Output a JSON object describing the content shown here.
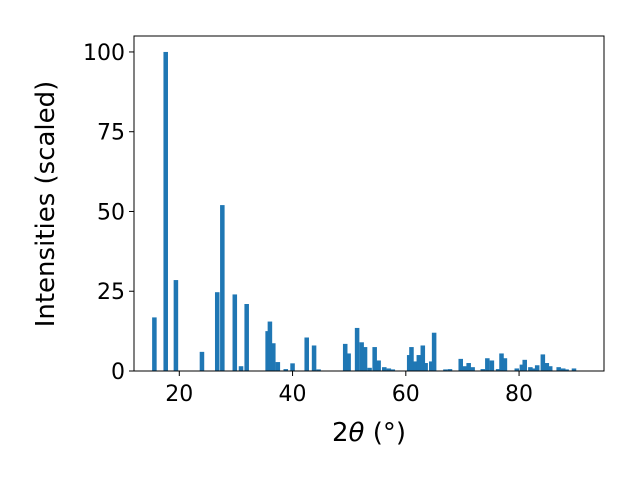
{
  "chart_data": {
    "type": "bar",
    "title": "",
    "xlabel_parts": {
      "pre": "2",
      "theta": "θ",
      "post": " (°)"
    },
    "ylabel": "Intensities (scaled)",
    "xlim": [
      12,
      95
    ],
    "ylim": [
      0,
      105
    ],
    "xticks": [
      20,
      40,
      60,
      80
    ],
    "yticks": [
      0,
      25,
      50,
      75,
      100
    ],
    "bar_color": "#1f77b4",
    "grid": false,
    "bars": [
      {
        "x": 15.6,
        "y": 16.8
      },
      {
        "x": 17.6,
        "y": 100
      },
      {
        "x": 19.4,
        "y": 28.5
      },
      {
        "x": 24.0,
        "y": 6.0
      },
      {
        "x": 26.7,
        "y": 24.7
      },
      {
        "x": 27.6,
        "y": 52.0
      },
      {
        "x": 29.8,
        "y": 24.0
      },
      {
        "x": 30.9,
        "y": 1.5
      },
      {
        "x": 31.9,
        "y": 21.0
      },
      {
        "x": 35.6,
        "y": 12.5
      },
      {
        "x": 36.0,
        "y": 15.5
      },
      {
        "x": 36.6,
        "y": 8.7
      },
      {
        "x": 37.4,
        "y": 2.8
      },
      {
        "x": 38.8,
        "y": 0.6
      },
      {
        "x": 40.0,
        "y": 2.4
      },
      {
        "x": 42.5,
        "y": 10.5
      },
      {
        "x": 43.8,
        "y": 8.0
      },
      {
        "x": 44.6,
        "y": 0.5
      },
      {
        "x": 49.3,
        "y": 8.5
      },
      {
        "x": 49.9,
        "y": 5.5
      },
      {
        "x": 51.4,
        "y": 13.5
      },
      {
        "x": 52.2,
        "y": 9.0
      },
      {
        "x": 52.8,
        "y": 7.5
      },
      {
        "x": 53.6,
        "y": 1.0
      },
      {
        "x": 54.5,
        "y": 7.5
      },
      {
        "x": 55.2,
        "y": 3.3
      },
      {
        "x": 56.2,
        "y": 1.2
      },
      {
        "x": 57.0,
        "y": 0.8
      },
      {
        "x": 57.7,
        "y": 0.5
      },
      {
        "x": 60.6,
        "y": 5.0
      },
      {
        "x": 61.0,
        "y": 7.5
      },
      {
        "x": 61.7,
        "y": 3.0
      },
      {
        "x": 62.3,
        "y": 5.0
      },
      {
        "x": 63.0,
        "y": 8.0
      },
      {
        "x": 63.5,
        "y": 2.5
      },
      {
        "x": 64.5,
        "y": 3.0
      },
      {
        "x": 65.0,
        "y": 12.0
      },
      {
        "x": 67.0,
        "y": 0.5
      },
      {
        "x": 67.8,
        "y": 0.6
      },
      {
        "x": 69.7,
        "y": 3.8
      },
      {
        "x": 70.4,
        "y": 1.5
      },
      {
        "x": 71.1,
        "y": 2.5
      },
      {
        "x": 71.8,
        "y": 1.2
      },
      {
        "x": 73.6,
        "y": 0.6
      },
      {
        "x": 74.4,
        "y": 4.0
      },
      {
        "x": 75.2,
        "y": 3.3
      },
      {
        "x": 76.3,
        "y": 0.6
      },
      {
        "x": 76.9,
        "y": 5.5
      },
      {
        "x": 77.5,
        "y": 4.0
      },
      {
        "x": 79.6,
        "y": 0.8
      },
      {
        "x": 80.5,
        "y": 2.0
      },
      {
        "x": 81.0,
        "y": 3.5
      },
      {
        "x": 82.0,
        "y": 1.2
      },
      {
        "x": 82.7,
        "y": 0.8
      },
      {
        "x": 83.2,
        "y": 1.8
      },
      {
        "x": 84.2,
        "y": 5.2
      },
      {
        "x": 84.9,
        "y": 2.5
      },
      {
        "x": 85.5,
        "y": 1.5
      },
      {
        "x": 87.0,
        "y": 1.2
      },
      {
        "x": 87.8,
        "y": 0.8
      },
      {
        "x": 88.4,
        "y": 0.5
      },
      {
        "x": 89.7,
        "y": 0.8
      }
    ]
  }
}
